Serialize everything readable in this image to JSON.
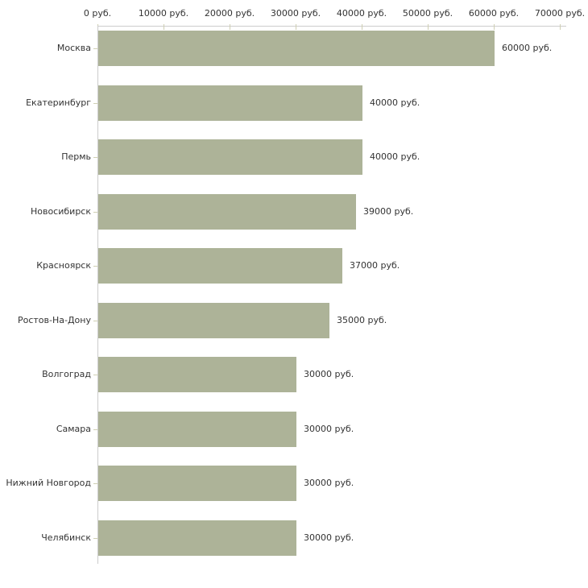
{
  "chart_data": {
    "type": "bar",
    "orientation": "horizontal",
    "title": "",
    "xlabel": "",
    "ylabel": "",
    "categories": [
      "Москва",
      "Екатеринбург",
      "Пермь",
      "Новосибирск",
      "Красноярск",
      "Ростов-На-Дону",
      "Волгоград",
      "Самара",
      "Нижний Новгород",
      "Челябинск"
    ],
    "values": [
      60000,
      40000,
      40000,
      39000,
      37000,
      35000,
      30000,
      30000,
      30000,
      30000
    ],
    "value_labels": [
      "60000 руб.",
      "40000 руб.",
      "40000 руб.",
      "39000 руб.",
      "37000 руб.",
      "35000 руб.",
      "30000 руб.",
      "30000 руб.",
      "30000 руб.",
      "30000 руб."
    ],
    "x_tick_labels": [
      "0 руб.",
      "10000 руб.",
      "20000 руб.",
      "30000 руб.",
      "40000 руб.",
      "50000 руб.",
      "60000 руб.",
      "70000 руб."
    ],
    "x_tick_values": [
      0,
      10000,
      20000,
      30000,
      40000,
      50000,
      60000,
      70000
    ],
    "xlim": [
      0,
      70000
    ],
    "grid": false,
    "legend": false,
    "colors": {
      "bar": "#adb398",
      "axis_line": "#cccccc",
      "tick_mark": "#cfcfb4",
      "text": "#333333",
      "background": "#ffffff"
    }
  }
}
